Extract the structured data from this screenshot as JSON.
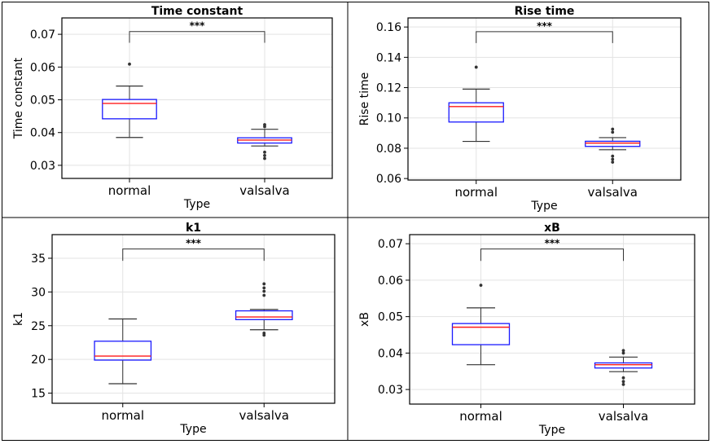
{
  "chart_data": [
    {
      "type": "box",
      "title": "Time constant",
      "xlabel": "Type",
      "ylabel": "Time constant",
      "categories": [
        "normal",
        "valsalva"
      ],
      "ylim": [
        0.026,
        0.075
      ],
      "yticks": [
        0.03,
        0.04,
        0.05,
        0.06,
        0.07
      ],
      "ytick_labels": [
        "0.03",
        "0.04",
        "0.05",
        "0.06",
        "0.07"
      ],
      "grid": true,
      "significance": "***",
      "boxes": [
        {
          "category": "normal",
          "whisker_low": 0.0385,
          "q1": 0.0442,
          "median": 0.0489,
          "q3": 0.0501,
          "whisker_high": 0.0542,
          "outliers": [
            0.0609
          ]
        },
        {
          "category": "valsalva",
          "whisker_low": 0.0359,
          "q1": 0.0368,
          "median": 0.0377,
          "q3": 0.0384,
          "whisker_high": 0.041,
          "outliers": [
            0.0321,
            0.033,
            0.034,
            0.0418,
            0.0424
          ]
        }
      ]
    },
    {
      "type": "box",
      "title": "Rise time",
      "xlabel": "Type",
      "ylabel": "Rise time",
      "categories": [
        "normal",
        "valsalva"
      ],
      "ylim": [
        0.059,
        0.166
      ],
      "yticks": [
        0.06,
        0.08,
        0.1,
        0.12,
        0.14,
        0.16
      ],
      "ytick_labels": [
        "0.06",
        "0.08",
        "0.10",
        "0.12",
        "0.14",
        "0.16"
      ],
      "grid": true,
      "significance": "***",
      "boxes": [
        {
          "category": "normal",
          "whisker_low": 0.0845,
          "q1": 0.0973,
          "median": 0.1075,
          "q3": 0.11,
          "whisker_high": 0.119,
          "outliers": [
            0.1335
          ]
        },
        {
          "category": "valsalva",
          "whisker_low": 0.079,
          "q1": 0.0812,
          "median": 0.0834,
          "q3": 0.0846,
          "whisker_high": 0.087,
          "outliers": [
            0.0708,
            0.0727,
            0.0748,
            0.0906,
            0.0926
          ]
        }
      ]
    },
    {
      "type": "box",
      "title": "k1",
      "xlabel": "Type",
      "ylabel": "k1",
      "categories": [
        "normal",
        "valsalva"
      ],
      "ylim": [
        13.5,
        38.5
      ],
      "yticks": [
        15,
        20,
        25,
        30,
        35
      ],
      "ytick_labels": [
        "15",
        "20",
        "25",
        "30",
        "35"
      ],
      "grid": true,
      "significance": "***",
      "boxes": [
        {
          "category": "normal",
          "whisker_low": 16.4,
          "q1": 19.9,
          "median": 20.5,
          "q3": 22.7,
          "whisker_high": 26.0,
          "outliers": []
        },
        {
          "category": "valsalva",
          "whisker_low": 24.4,
          "q1": 25.9,
          "median": 26.3,
          "q3": 27.2,
          "whisker_high": 27.4,
          "outliers": [
            23.6,
            23.9,
            29.5,
            30.1,
            30.6,
            31.2
          ]
        }
      ]
    },
    {
      "type": "box",
      "title": "xB",
      "xlabel": "Type",
      "ylabel": "xB",
      "categories": [
        "normal",
        "valsalva"
      ],
      "ylim": [
        0.026,
        0.0725
      ],
      "yticks": [
        0.03,
        0.04,
        0.05,
        0.06,
        0.07
      ],
      "ytick_labels": [
        "0.03",
        "0.04",
        "0.05",
        "0.06",
        "0.07"
      ],
      "grid": true,
      "significance": "***",
      "boxes": [
        {
          "category": "normal",
          "whisker_low": 0.0368,
          "q1": 0.0423,
          "median": 0.0471,
          "q3": 0.0481,
          "whisker_high": 0.0524,
          "outliers": [
            0.0586
          ]
        },
        {
          "category": "valsalva",
          "whisker_low": 0.0349,
          "q1": 0.0359,
          "median": 0.0368,
          "q3": 0.0373,
          "whisker_high": 0.0389,
          "outliers": [
            0.0314,
            0.0322,
            0.0332,
            0.04,
            0.0407
          ]
        }
      ]
    }
  ]
}
